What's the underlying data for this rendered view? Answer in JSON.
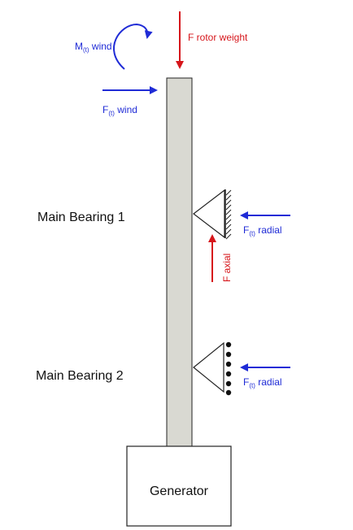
{
  "colors": {
    "shaft_fill": "#d9d9d2",
    "outline": "#222222",
    "force_blue": "#1f2bd6",
    "force_red": "#d6161b"
  },
  "labels": {
    "moment_wind": {
      "symbol": "M",
      "subscript": "(t)",
      "text": "wind"
    },
    "force_wind": {
      "symbol": "F",
      "subscript": "(t)",
      "text": "wind"
    },
    "rotor_weight": "F rotor weight",
    "main_bearing_1": "Main Bearing 1",
    "main_bearing_2": "Main Bearing 2",
    "radial_1": {
      "symbol": "F",
      "subscript": "(t)",
      "text": "radial"
    },
    "radial_2": {
      "symbol": "F",
      "subscript": "(t)",
      "text": "radial"
    },
    "axial": "F axial",
    "generator": "Generator"
  },
  "icons": {
    "support_1": "fixed-support-hatched",
    "support_2": "roller-support"
  }
}
